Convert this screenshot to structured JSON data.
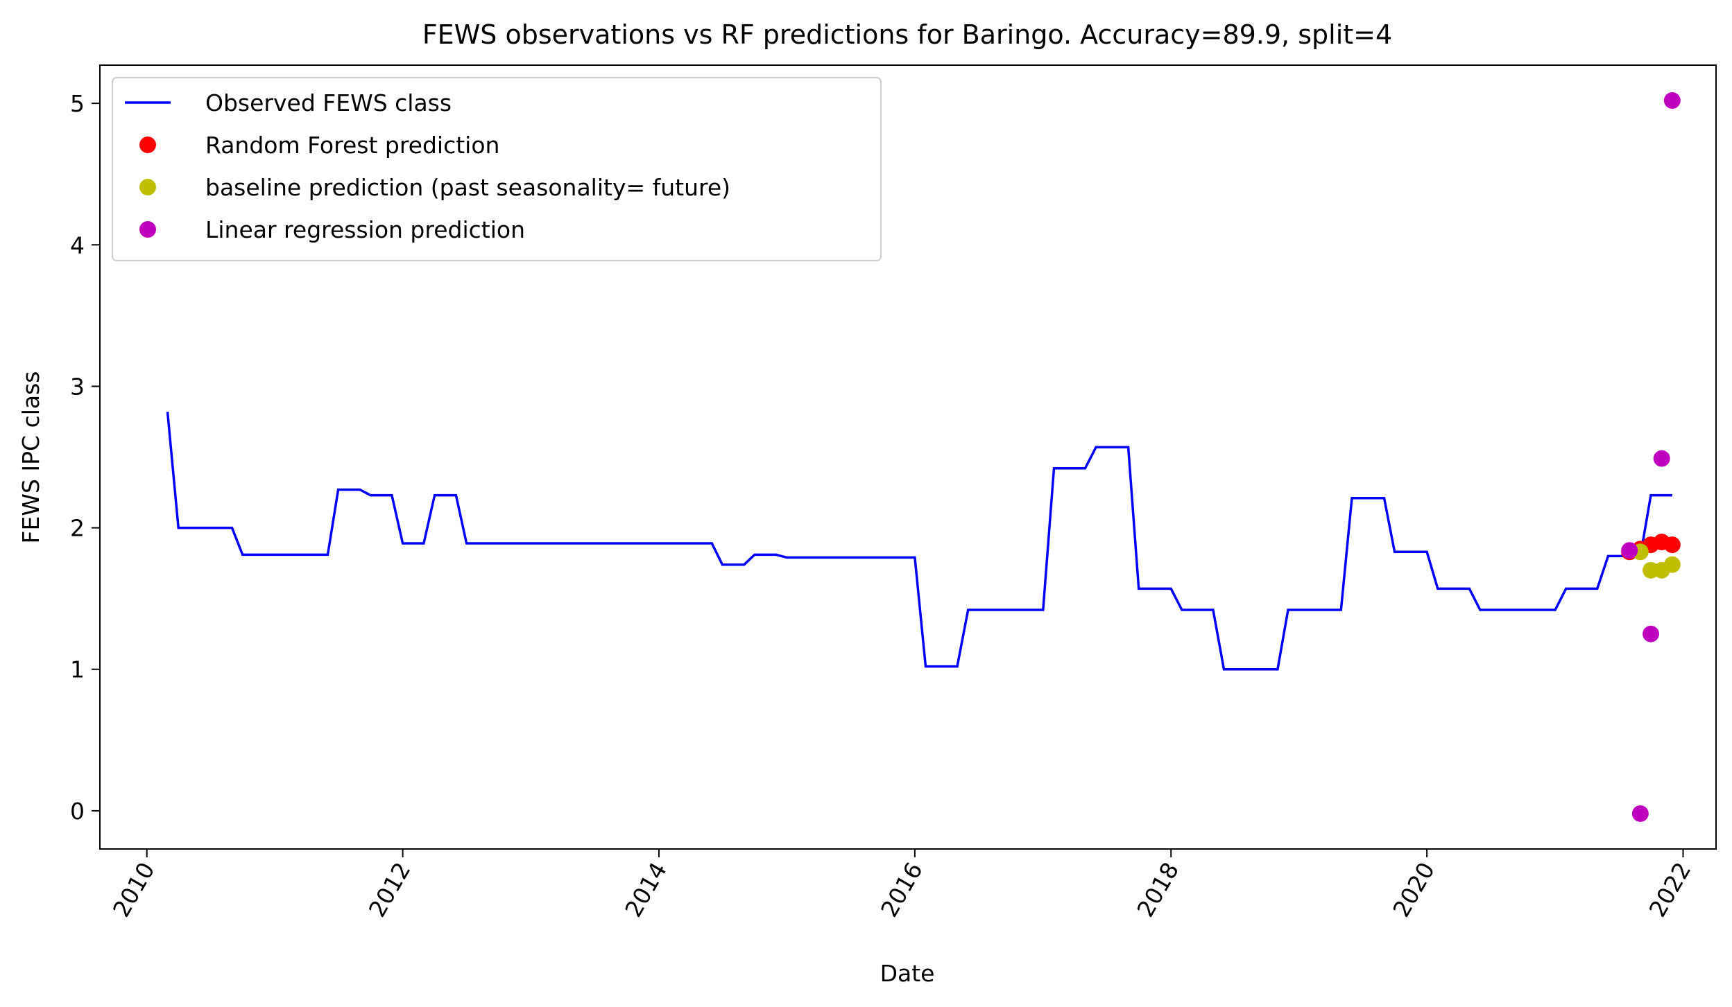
{
  "chart_data": {
    "type": "line",
    "title": "FEWS observations vs RF predictions for Baringo. Accuracy=89.9, split=4",
    "xlabel": "Date",
    "ylabel": "FEWS IPC class",
    "xlim": [
      "2009-08-20",
      "2022-04-05"
    ],
    "ylim": [
      -0.27,
      5.27
    ],
    "x_ticks": [
      "2010-01-01",
      "2012-01-01",
      "2014-01-01",
      "2016-01-01",
      "2018-01-01",
      "2020-01-01",
      "2022-01-01"
    ],
    "x_tick_labels": [
      "2010",
      "2012",
      "2014",
      "2016",
      "2018",
      "2020",
      "2022"
    ],
    "y_ticks": [
      0,
      1,
      2,
      3,
      4,
      5
    ],
    "y_tick_labels": [
      "0",
      "1",
      "2",
      "3",
      "4",
      "5"
    ],
    "grid": false,
    "legend_position": "top-left",
    "series": [
      {
        "name": "Observed FEWS class",
        "kind": "line",
        "color": "#0000ff",
        "points": [
          [
            "2010-03-01",
            2.82
          ],
          [
            "2010-04-01",
            2.0
          ],
          [
            "2010-05-01",
            2.0
          ],
          [
            "2010-06-01",
            2.0
          ],
          [
            "2010-07-01",
            2.0
          ],
          [
            "2010-08-01",
            2.0
          ],
          [
            "2010-09-01",
            2.0
          ],
          [
            "2010-10-01",
            1.81
          ],
          [
            "2010-11-01",
            1.81
          ],
          [
            "2010-12-01",
            1.81
          ],
          [
            "2011-01-01",
            1.81
          ],
          [
            "2011-02-01",
            1.81
          ],
          [
            "2011-03-01",
            1.81
          ],
          [
            "2011-04-01",
            1.81
          ],
          [
            "2011-05-01",
            1.81
          ],
          [
            "2011-06-01",
            1.81
          ],
          [
            "2011-07-01",
            2.27
          ],
          [
            "2011-08-01",
            2.27
          ],
          [
            "2011-09-01",
            2.27
          ],
          [
            "2011-10-01",
            2.23
          ],
          [
            "2011-11-01",
            2.23
          ],
          [
            "2011-12-01",
            2.23
          ],
          [
            "2012-01-01",
            1.89
          ],
          [
            "2012-02-01",
            1.89
          ],
          [
            "2012-03-01",
            1.89
          ],
          [
            "2012-04-01",
            2.23
          ],
          [
            "2012-05-01",
            2.23
          ],
          [
            "2012-06-01",
            2.23
          ],
          [
            "2012-07-01",
            1.89
          ],
          [
            "2012-10-01",
            1.89
          ],
          [
            "2013-01-01",
            1.89
          ],
          [
            "2013-04-01",
            1.89
          ],
          [
            "2013-07-01",
            1.89
          ],
          [
            "2013-10-01",
            1.89
          ],
          [
            "2014-01-01",
            1.89
          ],
          [
            "2014-04-01",
            1.89
          ],
          [
            "2014-06-01",
            1.89
          ],
          [
            "2014-07-01",
            1.74
          ],
          [
            "2014-08-01",
            1.74
          ],
          [
            "2014-09-01",
            1.74
          ],
          [
            "2014-10-01",
            1.81
          ],
          [
            "2014-11-01",
            1.81
          ],
          [
            "2014-12-01",
            1.81
          ],
          [
            "2015-01-01",
            1.79
          ],
          [
            "2015-04-01",
            1.79
          ],
          [
            "2015-07-01",
            1.79
          ],
          [
            "2015-10-01",
            1.79
          ],
          [
            "2016-01-01",
            1.79
          ],
          [
            "2016-02-01",
            1.02
          ],
          [
            "2016-03-01",
            1.02
          ],
          [
            "2016-04-01",
            1.02
          ],
          [
            "2016-05-01",
            1.02
          ],
          [
            "2016-06-01",
            1.42
          ],
          [
            "2016-09-01",
            1.42
          ],
          [
            "2016-12-01",
            1.42
          ],
          [
            "2017-01-01",
            1.42
          ],
          [
            "2017-02-01",
            2.42
          ],
          [
            "2017-03-01",
            2.42
          ],
          [
            "2017-04-01",
            2.42
          ],
          [
            "2017-05-01",
            2.42
          ],
          [
            "2017-06-01",
            2.57
          ],
          [
            "2017-07-01",
            2.57
          ],
          [
            "2017-08-01",
            2.57
          ],
          [
            "2017-09-01",
            2.57
          ],
          [
            "2017-10-01",
            1.57
          ],
          [
            "2017-11-01",
            1.57
          ],
          [
            "2017-12-01",
            1.57
          ],
          [
            "2018-01-01",
            1.57
          ],
          [
            "2018-02-01",
            1.42
          ],
          [
            "2018-03-01",
            1.42
          ],
          [
            "2018-04-01",
            1.42
          ],
          [
            "2018-05-01",
            1.42
          ],
          [
            "2018-06-01",
            1.0
          ],
          [
            "2018-08-01",
            1.0
          ],
          [
            "2018-10-01",
            1.0
          ],
          [
            "2018-11-01",
            1.0
          ],
          [
            "2018-12-01",
            1.42
          ],
          [
            "2019-03-01",
            1.42
          ],
          [
            "2019-05-01",
            1.42
          ],
          [
            "2019-06-01",
            2.21
          ],
          [
            "2019-07-01",
            2.21
          ],
          [
            "2019-08-01",
            2.21
          ],
          [
            "2019-09-01",
            2.21
          ],
          [
            "2019-10-01",
            1.83
          ],
          [
            "2019-11-01",
            1.83
          ],
          [
            "2019-12-01",
            1.83
          ],
          [
            "2020-01-01",
            1.83
          ],
          [
            "2020-02-01",
            1.57
          ],
          [
            "2020-03-01",
            1.57
          ],
          [
            "2020-04-01",
            1.57
          ],
          [
            "2020-05-01",
            1.57
          ],
          [
            "2020-06-01",
            1.42
          ],
          [
            "2020-09-01",
            1.42
          ],
          [
            "2020-12-01",
            1.42
          ],
          [
            "2021-01-01",
            1.42
          ],
          [
            "2021-02-01",
            1.57
          ],
          [
            "2021-03-01",
            1.57
          ],
          [
            "2021-04-01",
            1.57
          ],
          [
            "2021-05-01",
            1.57
          ],
          [
            "2021-06-01",
            1.8
          ],
          [
            "2021-07-01",
            1.8
          ],
          [
            "2021-08-01",
            1.8
          ],
          [
            "2021-09-01",
            1.8
          ],
          [
            "2021-10-01",
            2.23
          ],
          [
            "2021-11-01",
            2.23
          ],
          [
            "2021-12-01",
            2.23
          ]
        ]
      },
      {
        "name": "Random Forest prediction",
        "kind": "scatter",
        "color": "#ff0000",
        "points": [
          [
            "2021-08-01",
            1.83
          ],
          [
            "2021-09-01",
            1.85
          ],
          [
            "2021-10-01",
            1.88
          ],
          [
            "2021-11-01",
            1.9
          ],
          [
            "2021-12-01",
            1.88
          ]
        ]
      },
      {
        "name": "baseline prediction (past seasonality= future)",
        "kind": "scatter",
        "color": "#bfbf00",
        "points": [
          [
            "2021-09-01",
            1.83
          ],
          [
            "2021-10-01",
            1.7
          ],
          [
            "2021-11-01",
            1.7
          ],
          [
            "2021-12-01",
            1.74
          ]
        ]
      },
      {
        "name": "Linear regression prediction",
        "kind": "scatter",
        "color": "#bf00bf",
        "points": [
          [
            "2021-08-01",
            1.84
          ],
          [
            "2021-09-01",
            -0.02
          ],
          [
            "2021-10-01",
            1.25
          ],
          [
            "2021-11-01",
            2.49
          ],
          [
            "2021-12-01",
            5.02
          ]
        ]
      }
    ]
  }
}
